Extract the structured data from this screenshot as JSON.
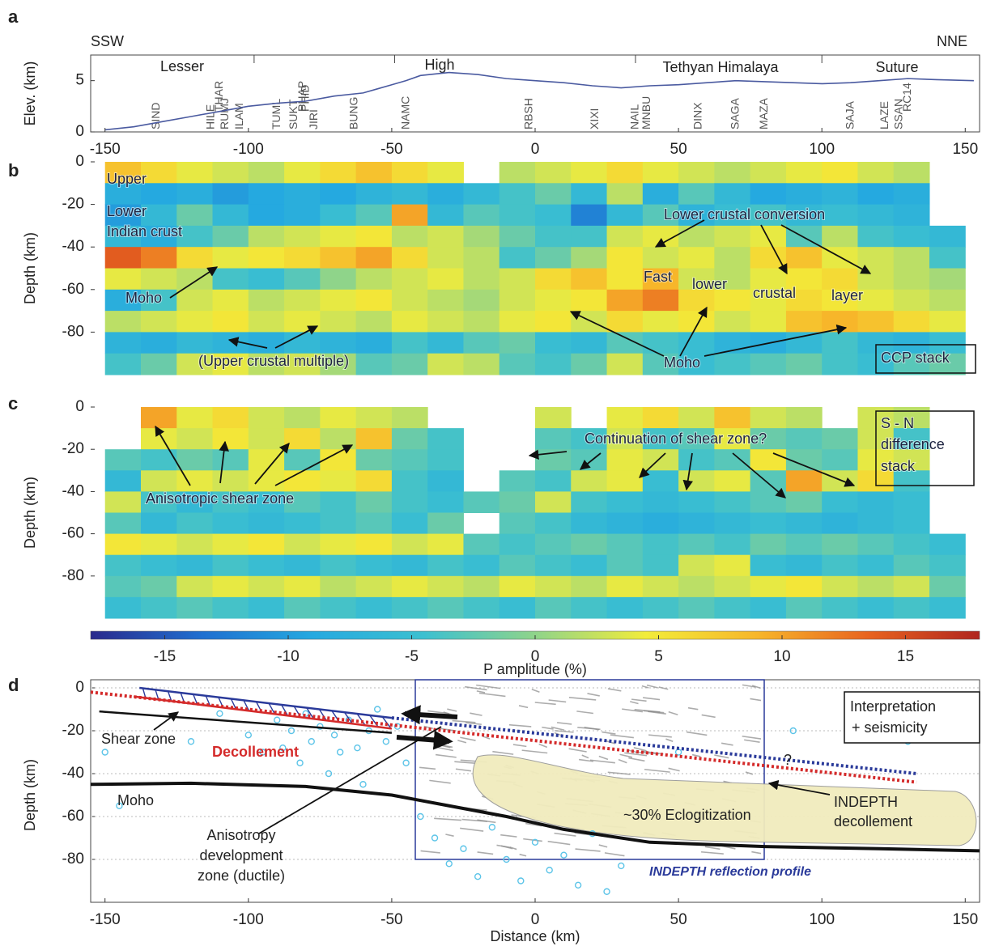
{
  "chart_data": [
    {
      "type": "line",
      "panel_label": "a",
      "left_label": "SSW",
      "right_label": "NNE",
      "ylabel": "Elev. (km)",
      "color": "#4a5aa0",
      "x": [
        -150,
        -140,
        -130,
        -120,
        -110,
        -100,
        -90,
        -80,
        -70,
        -60,
        -55,
        -50,
        -45,
        -40,
        -30,
        -20,
        -10,
        0,
        10,
        20,
        30,
        40,
        50,
        60,
        70,
        80,
        90,
        100,
        110,
        120,
        130,
        140,
        153
      ],
      "y": [
        0.2,
        0.5,
        1,
        1.5,
        2,
        2.5,
        2.8,
        3,
        3.5,
        3.8,
        4.2,
        4.6,
        5,
        5.5,
        5.8,
        5.6,
        5.2,
        5,
        4.8,
        4.5,
        4.3,
        4.5,
        4.6,
        4.8,
        5,
        4.9,
        4.8,
        4.7,
        4.8,
        5,
        5.2,
        5.1,
        5
      ],
      "regions": [
        "Lesser",
        "High",
        "Tethyan Himalaya",
        "Suture"
      ],
      "region_boundaries": [
        -98,
        -49,
        35,
        100
      ],
      "stations": {
        "names": [
          "SIND",
          "HILE",
          "RUMJ",
          "THAR",
          "ILAM",
          "TUML",
          "SUKT",
          "PHAP",
          "JIRI",
          "PHID",
          "BUNG",
          "NAMC",
          "RBSH",
          "XIXI",
          "NAIL",
          "MNBU",
          "DINX",
          "SAGA",
          "MAZA",
          "SAJA",
          "LAZE",
          "SSAN",
          "RC14"
        ],
        "x": [
          -132,
          -113,
          -108,
          -110,
          -103,
          -90,
          -84,
          -81,
          -77,
          -80,
          -63,
          -45,
          -2,
          21,
          35,
          39,
          57,
          70,
          80,
          110,
          122,
          127,
          130
        ]
      },
      "xlim": [
        -155,
        155
      ],
      "xticks": [
        -150,
        -100,
        -50,
        0,
        50,
        100,
        150
      ],
      "ylim": [
        0,
        7.5
      ],
      "yticks": [
        0,
        5
      ]
    },
    {
      "type": "heatmap",
      "panel_label": "b",
      "ylabel": "Depth (km)",
      "x_edges": [
        -150,
        -137.5,
        -125,
        -112.5,
        -100,
        -87.5,
        -75,
        -62.5,
        -50,
        -37.5,
        -25,
        -12.5,
        0,
        12.5,
        25,
        37.5,
        50,
        62.5,
        75,
        87.5,
        100,
        112.5,
        125,
        137.5,
        150
      ],
      "y_edges": [
        0,
        -10,
        -20,
        -30,
        -40,
        -50,
        -60,
        -70,
        -80,
        -90,
        -100
      ],
      "z": [
        [
          8,
          6,
          4,
          3,
          2,
          4,
          6,
          8,
          6,
          4,
          null,
          2,
          3,
          4,
          6,
          4,
          3,
          2,
          3,
          4,
          5,
          3,
          2,
          null
        ],
        [
          -8,
          -9,
          -8,
          -10,
          -9,
          -8,
          -9,
          -7,
          -6,
          -8,
          -6,
          -4,
          -2,
          -6,
          2,
          -8,
          -3,
          -6,
          -9,
          -8,
          -7,
          -9,
          -8,
          null
        ],
        [
          -10,
          -6,
          -2,
          -6,
          -9,
          -8,
          -5,
          -3,
          10,
          -6,
          -3,
          -4,
          -5,
          -12,
          -6,
          -3,
          -7,
          -5,
          -4,
          -6,
          -5,
          -6,
          -7,
          null
        ],
        [
          -6,
          -8,
          -4,
          -2,
          2,
          3,
          4,
          5,
          2,
          3,
          1,
          -2,
          -4,
          -4,
          3,
          4,
          2,
          3,
          4,
          -3,
          2,
          -4,
          -5,
          -6
        ],
        [
          14,
          12,
          6,
          4,
          5,
          6,
          8,
          10,
          6,
          3,
          2,
          -4,
          -2,
          1,
          5,
          3,
          4,
          2,
          6,
          8,
          4,
          3,
          2,
          -4
        ],
        [
          4,
          3,
          2,
          -4,
          -5,
          -3,
          0,
          2,
          3,
          4,
          2,
          3,
          6,
          8,
          5,
          9,
          3,
          2,
          4,
          5,
          6,
          3,
          2,
          1
        ],
        [
          -8,
          -4,
          3,
          4,
          2,
          3,
          4,
          5,
          3,
          2,
          1,
          3,
          4,
          5,
          10,
          12,
          6,
          5,
          4,
          6,
          5,
          4,
          3,
          2
        ],
        [
          2,
          3,
          4,
          5,
          3,
          4,
          3,
          2,
          4,
          3,
          2,
          4,
          5,
          3,
          6,
          4,
          5,
          3,
          4,
          8,
          9,
          8,
          6,
          4
        ],
        [
          -7,
          -8,
          -6,
          -7,
          -8,
          -6,
          -7,
          -8,
          -4,
          -6,
          -3,
          -2,
          -5,
          -6,
          -3,
          -4,
          -5,
          -7,
          -8,
          -6,
          -4,
          -6,
          -7,
          -5
        ],
        [
          -4,
          -2,
          3,
          4,
          2,
          3,
          1,
          -3,
          -2,
          3,
          2,
          -3,
          -4,
          -2,
          3,
          -3,
          -5,
          -4,
          -3,
          -2,
          -4,
          -5,
          -3,
          -2
        ]
      ],
      "annotations": [
        "Upper",
        "Lower",
        "Indian crust",
        "Moho",
        "(Upper crustal multiple)",
        "Lower crustal conversion",
        "Fast",
        "lower",
        "crustal",
        "layer",
        "Moho",
        "CCP stack"
      ],
      "xlim": [
        -155,
        155
      ],
      "ylim": [
        -100,
        0
      ],
      "yticks": [
        0,
        -20,
        -40,
        -60,
        -80
      ]
    },
    {
      "type": "heatmap",
      "panel_label": "c",
      "ylabel": "Depth (km)",
      "x_edges": [
        -150,
        -137.5,
        -125,
        -112.5,
        -100,
        -87.5,
        -75,
        -62.5,
        -50,
        -37.5,
        -25,
        -12.5,
        0,
        12.5,
        25,
        37.5,
        50,
        62.5,
        75,
        87.5,
        100,
        112.5,
        125,
        137.5,
        150
      ],
      "y_edges": [
        0,
        -10,
        -20,
        -30,
        -40,
        -50,
        -60,
        -70,
        -80,
        -90,
        -100
      ],
      "z": [
        [
          null,
          10,
          4,
          6,
          3,
          2,
          4,
          3,
          2,
          null,
          null,
          null,
          3,
          null,
          4,
          6,
          3,
          8,
          3,
          2,
          null,
          3,
          2,
          null
        ],
        [
          null,
          4,
          3,
          5,
          3,
          6,
          2,
          8,
          -2,
          -4,
          null,
          null,
          -3,
          -4,
          3,
          -4,
          -3,
          4,
          -2,
          -3,
          -2,
          3,
          -4,
          null
        ],
        [
          -3,
          -4,
          -2,
          -3,
          4,
          -3,
          5,
          -2,
          -3,
          -4,
          null,
          null,
          -2,
          -3,
          4,
          3,
          -4,
          -3,
          5,
          -2,
          -3,
          4,
          3,
          null
        ],
        [
          -6,
          3,
          4,
          3,
          4,
          5,
          4,
          6,
          -4,
          -6,
          null,
          -3,
          -4,
          3,
          4,
          -5,
          3,
          4,
          -3,
          10,
          3,
          6,
          -4,
          null
        ],
        [
          3,
          -4,
          -6,
          -4,
          -5,
          -3,
          -4,
          -2,
          -4,
          -5,
          -3,
          -2,
          3,
          -4,
          -5,
          -6,
          -5,
          -4,
          -3,
          -2,
          -5,
          -6,
          -5,
          null
        ],
        [
          -3,
          -6,
          -4,
          -5,
          -6,
          -5,
          -4,
          -3,
          -5,
          -2,
          null,
          -3,
          -4,
          -6,
          -7,
          -8,
          -7,
          -6,
          -5,
          -6,
          -7,
          -6,
          -5,
          null
        ],
        [
          5,
          4,
          3,
          4,
          5,
          3,
          4,
          5,
          3,
          4,
          -3,
          -4,
          -3,
          -2,
          -3,
          -4,
          -3,
          -4,
          -2,
          -3,
          -2,
          -3,
          -4,
          -5
        ],
        [
          -4,
          -5,
          -6,
          -4,
          -5,
          -6,
          -4,
          -5,
          -6,
          -4,
          -5,
          -3,
          -4,
          -5,
          -3,
          -4,
          3,
          4,
          -5,
          -6,
          -4,
          -5,
          -3,
          -4
        ],
        [
          -3,
          -2,
          3,
          4,
          3,
          4,
          2,
          3,
          4,
          3,
          2,
          4,
          3,
          2,
          4,
          3,
          2,
          3,
          4,
          5,
          3,
          2,
          3,
          -2
        ],
        [
          -5,
          -4,
          -3,
          -4,
          -5,
          -3,
          -4,
          -5,
          -4,
          -3,
          -4,
          -5,
          -3,
          -4,
          -5,
          -4,
          -3,
          -4,
          -5,
          -3,
          -4,
          -5,
          -4,
          -5
        ]
      ],
      "annotations": [
        "S - N",
        "difference",
        "stack",
        "Continuation of shear zone?",
        "Anisotropic shear zone"
      ],
      "xlim": [
        -155,
        155
      ],
      "ylim": [
        -100,
        0
      ],
      "yticks": [
        0,
        -20,
        -40,
        -60,
        -80
      ]
    },
    {
      "type": "colorbar",
      "xlabel": "P amplitude (%)",
      "colormap": [
        "#2a2a8c",
        "#1f6fd0",
        "#25a9e0",
        "#3cc0d0",
        "#8fd48a",
        "#f2ec3a",
        "#f7b62a",
        "#e8631f",
        "#b0261f"
      ],
      "xlim": [
        -18,
        18
      ],
      "xticks": [
        -15,
        -10,
        -5,
        0,
        5,
        10,
        15
      ]
    },
    {
      "type": "interpretation",
      "panel_label": "d",
      "ylabel": "Depth (km)",
      "xlabel": "Distance (km)",
      "moho": {
        "x": [
          -155,
          -120,
          -80,
          -50,
          -30,
          -10,
          10,
          40,
          80,
          120,
          155
        ],
        "y": [
          -45,
          -44.5,
          -46,
          -50,
          -55,
          -60,
          -66,
          -72,
          -74,
          -75,
          -76
        ],
        "color": "#111111"
      },
      "structures": [
        {
          "x": [
            -155,
            133
          ],
          "y": [
            -2,
            -44
          ],
          "color": "#d42a2a",
          "dash": true
        },
        {
          "x": [
            -50,
            133
          ],
          "y": [
            -14,
            -40
          ],
          "color": "#2a3a9a",
          "dash": true
        },
        {
          "x": [
            -138,
            -50
          ],
          "y": [
            0,
            -14
          ],
          "color": "#2a3a9a",
          "dash": false
        },
        {
          "x": [
            -140,
            -50
          ],
          "y": [
            -4,
            -19
          ],
          "color": "#d42a2a",
          "dash": false
        },
        {
          "x": [
            -152,
            -50
          ],
          "y": [
            -11,
            -21
          ],
          "color": "#111111",
          "dash": false
        }
      ],
      "seismicity": {
        "color": "#5cc4e8",
        "x": [
          -150,
          -145,
          -120,
          -110,
          -100,
          -95,
          -90,
          -88,
          -85,
          -82,
          -80,
          -78,
          -75,
          -72,
          -70,
          -68,
          -65,
          -62,
          -60,
          -58,
          -55,
          -52,
          -48,
          -45,
          -40,
          -35,
          -30,
          -25,
          -20,
          -15,
          -10,
          -5,
          0,
          5,
          10,
          15,
          20,
          25,
          30,
          50,
          90,
          130
        ],
        "y": [
          -30,
          -55,
          -25,
          -12,
          -22,
          -30,
          -15,
          -28,
          -20,
          -35,
          -12,
          -25,
          -18,
          -40,
          -22,
          -30,
          -15,
          -28,
          -45,
          -20,
          -10,
          -25,
          -18,
          -35,
          -60,
          -70,
          -82,
          -75,
          -88,
          -65,
          -80,
          -90,
          -72,
          -85,
          -78,
          -92,
          -68,
          -95,
          -83,
          -30,
          -20,
          -25
        ]
      },
      "annotations": [
        "Interpretation",
        "+ seismicity",
        "Shear zone",
        "Decollement",
        "Moho",
        "Anisotropy",
        "development",
        "zone (ductile)",
        "~30% Eclogitization",
        "?",
        "INDEPTH",
        "decollement",
        "INDEPTH reflection profile"
      ],
      "grid": true,
      "xlim": [
        -155,
        155
      ],
      "xticks": [
        -150,
        -100,
        -50,
        0,
        50,
        100,
        150
      ],
      "ylim": [
        -100,
        0
      ],
      "yticks": [
        0,
        -20,
        -40,
        -60,
        -80
      ]
    }
  ]
}
